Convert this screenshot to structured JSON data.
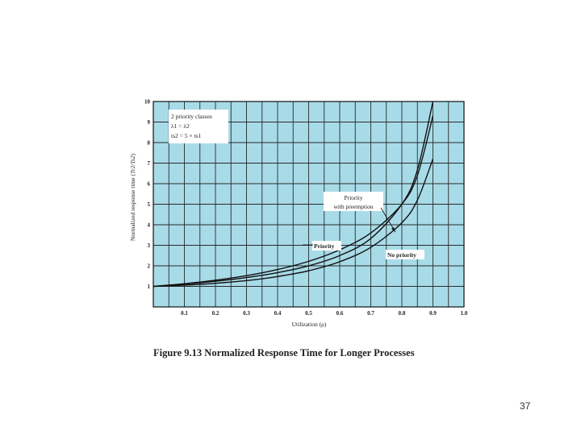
{
  "chart_data": {
    "type": "line",
    "title": "",
    "caption": "Figure 9.13 Normalized Response Time for Longer Processes",
    "xlabel": "Utilization (ρ)",
    "ylabel_main": "Normalized response time (",
    "ylabel_math": "Tr2/Ts2",
    "ylabel_close": ")",
    "xlim": [
      0,
      1.0
    ],
    "ylim": [
      0,
      10
    ],
    "grid": true,
    "x_ticks": [
      "0.1",
      "0.2",
      "0.3",
      "0.4",
      "0.5",
      "0.6",
      "0.7",
      "0.8",
      "0.9",
      "1.0"
    ],
    "y_ticks": [
      "1",
      "2",
      "3",
      "4",
      "5",
      "6",
      "7",
      "8",
      "9",
      "10"
    ],
    "legend_box": {
      "lines": [
        "2 priority classes",
        "λ1 = λ2",
        "ts2 = 5 × ts1"
      ]
    },
    "series": [
      {
        "name": "Priority",
        "x": [
          0,
          0.1,
          0.2,
          0.3,
          0.4,
          0.5,
          0.6,
          0.7,
          0.8,
          0.85,
          0.9
        ],
        "y": [
          1.0,
          1.13,
          1.3,
          1.52,
          1.82,
          2.22,
          2.78,
          3.6,
          5.0,
          6.4,
          9.3
        ]
      },
      {
        "name": "Priority with preemption",
        "x": [
          0,
          0.1,
          0.2,
          0.3,
          0.4,
          0.5,
          0.6,
          0.7,
          0.8,
          0.85,
          0.9
        ],
        "y": [
          1.0,
          1.06,
          1.15,
          1.28,
          1.48,
          1.76,
          2.2,
          2.9,
          4.1,
          5.2,
          7.2
        ]
      },
      {
        "name": "No priority",
        "x": [
          0,
          0.1,
          0.2,
          0.3,
          0.4,
          0.5,
          0.6,
          0.7,
          0.8,
          0.85,
          0.9
        ],
        "y": [
          1.0,
          1.11,
          1.25,
          1.43,
          1.67,
          2.0,
          2.5,
          3.33,
          5.0,
          6.67,
          10.0
        ]
      }
    ],
    "annotations": {
      "priority_preempt": [
        "Priority",
        "with preemption"
      ],
      "priority": "Priority",
      "no_priority": "No priority"
    },
    "colors": {
      "plot_bg": "#a8dbe8",
      "grid": "#2a2a2a",
      "line": "#111111"
    }
  },
  "slide": {
    "number": "37"
  }
}
